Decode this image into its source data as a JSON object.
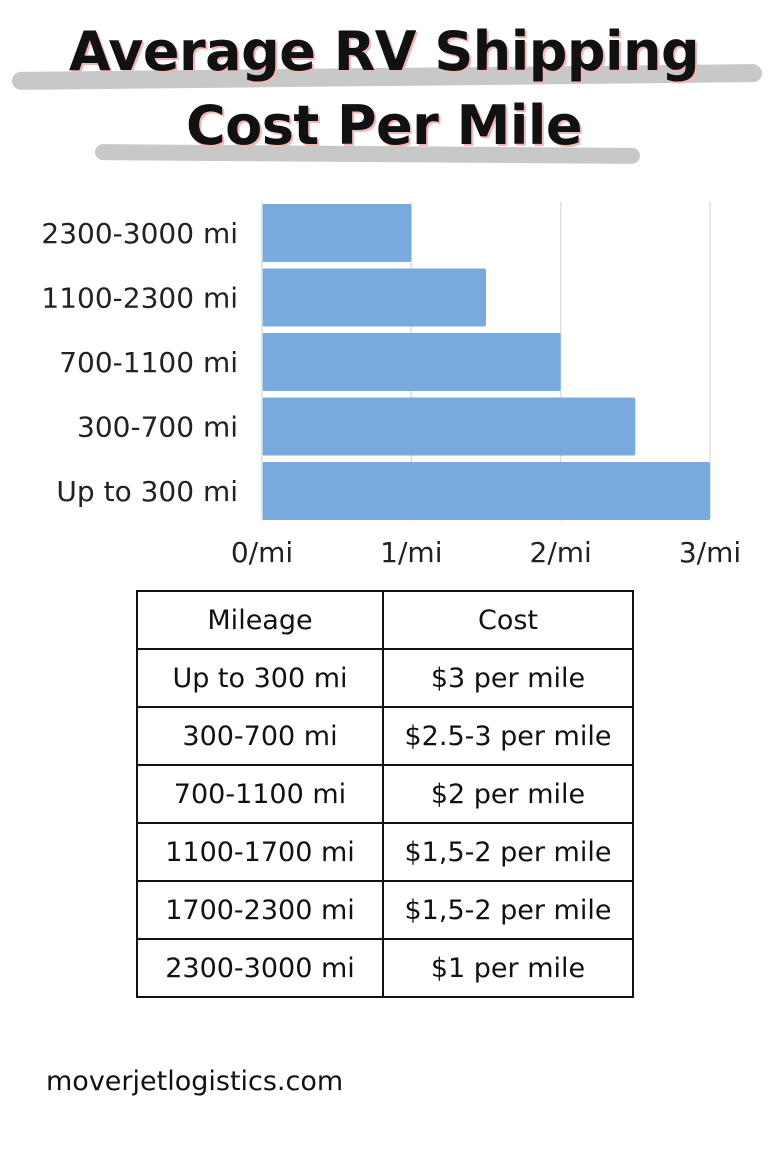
{
  "title": {
    "line1": "Average RV Shipping",
    "line2": "Cost Per Mile"
  },
  "chart_data": {
    "type": "bar",
    "orientation": "horizontal",
    "categories": [
      "2300-3000 mi",
      "1100-2300 mi",
      "700-1100 mi",
      "300-700 mi",
      "Up to 300 mi"
    ],
    "values": [
      1,
      1.5,
      2,
      2.5,
      3
    ],
    "xlim": [
      0,
      3
    ],
    "x_ticks": [
      "0/mi",
      "1/mi",
      "2/mi",
      "3/mi"
    ],
    "grid": "vertical",
    "bar_color": "#78aade",
    "grid_color": "#dddddd"
  },
  "table": {
    "headers": [
      "Mileage",
      "Cost"
    ],
    "rows": [
      [
        "Up to 300 mi",
        "$3 per mile"
      ],
      [
        "300-700 mi",
        "$2.5-3 per mile"
      ],
      [
        "700-1100 mi",
        "$2 per mile"
      ],
      [
        "1100-1700 mi",
        "$1,5-2 per mile"
      ],
      [
        "1700-2300 mi",
        "$1,5-2 per mile"
      ],
      [
        "2300-3000 mi",
        "$1 per mile"
      ]
    ]
  },
  "footer": {
    "website": "moverjetlogistics.com"
  }
}
